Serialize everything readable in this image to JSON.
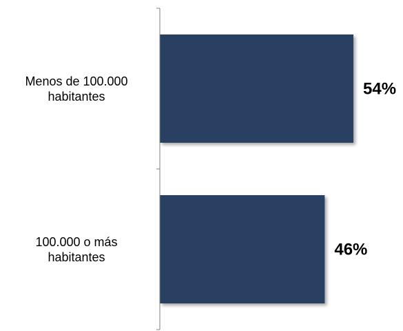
{
  "chart_data": {
    "type": "bar",
    "orientation": "horizontal",
    "categories": [
      [
        "Menos de 100.000",
        "habitantes"
      ],
      [
        "100.000 o más",
        "habitantes"
      ]
    ],
    "values": [
      54,
      46
    ],
    "value_labels": [
      "54%",
      "46%"
    ],
    "unit": "%",
    "xlim": [
      0,
      60
    ],
    "grid": false,
    "legend": "none",
    "bar_color": "#2a4163"
  }
}
